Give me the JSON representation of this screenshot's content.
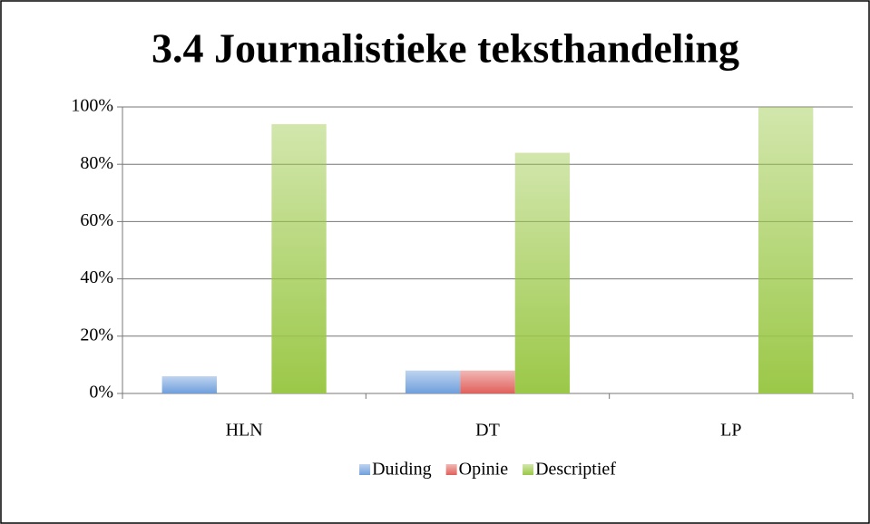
{
  "chart_data": {
    "type": "bar",
    "title": "3.4 Journalistieke teksthandeling",
    "categories": [
      "HLN",
      "DT",
      "LP"
    ],
    "series": [
      {
        "name": "Duiding",
        "color": "#6f9fdc",
        "values": [
          6,
          8,
          0
        ]
      },
      {
        "name": "Opinie",
        "color": "#e0605b",
        "values": [
          0,
          8,
          0
        ]
      },
      {
        "name": "Descriptief",
        "color": "#9bc848",
        "values": [
          94,
          84,
          100
        ]
      }
    ],
    "ylim": [
      0,
      100
    ],
    "yticks": [
      {
        "value": 0,
        "label": "0%"
      },
      {
        "value": 20,
        "label": "20%"
      },
      {
        "value": 40,
        "label": "40%"
      },
      {
        "value": 60,
        "label": "60%"
      },
      {
        "value": 80,
        "label": "80%"
      },
      {
        "value": 100,
        "label": "100%"
      }
    ],
    "grid": true,
    "legend": "bottom"
  }
}
